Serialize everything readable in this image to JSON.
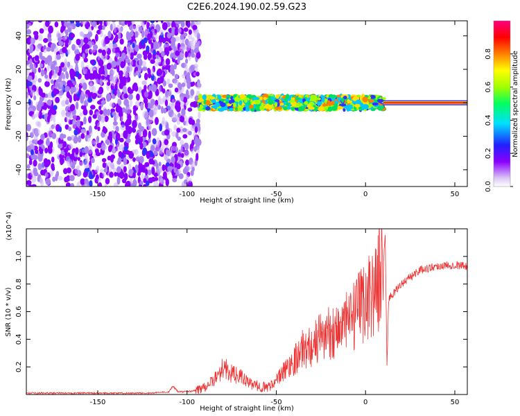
{
  "title": "C2E6.2024.190.02.59.G23",
  "chart_data": [
    {
      "type": "heatmap",
      "xlabel": "Height of straight line (km)",
      "ylabel": "Frequency (Hz)",
      "xlim": [
        -190,
        57
      ],
      "ylim": [
        -50,
        49
      ],
      "xticks": [
        -150,
        -100,
        -50,
        0,
        50
      ],
      "yticks": [
        -40,
        -20,
        0,
        20,
        40
      ],
      "colorbar": {
        "label": "Normalized spectral amplitude",
        "range": [
          0,
          1
        ],
        "ticks": [
          0.0,
          0.2,
          0.4,
          0.6,
          0.8
        ]
      },
      "regions": [
        {
          "x": [
            -190,
            -108
          ],
          "freq_spread": 50,
          "amplitude": 0.12,
          "desc": "broadband noise"
        },
        {
          "x": [
            -108,
            -93
          ],
          "freq_spread": 50,
          "amplitude": 0.1,
          "desc": "broadband noise"
        },
        {
          "x": [
            -93,
            10
          ],
          "freq_spread": 4,
          "amplitude": 0.6,
          "desc": "signal near 0 Hz"
        },
        {
          "x": [
            10,
            57
          ],
          "freq_spread": 1,
          "amplitude": 0.95,
          "desc": "strong signal at 0 Hz"
        }
      ]
    },
    {
      "type": "line",
      "xlabel": "Height of straight line (km)",
      "ylabel": "SNR (10 * v/v)",
      "y_multiplier": "(x10^4)",
      "xlim": [
        -190,
        57
      ],
      "ylim": [
        0,
        1.2
      ],
      "xticks": [
        -150,
        -100,
        -50,
        0,
        50
      ],
      "yticks": [
        0.2,
        0.4,
        0.6,
        0.8,
        1.0
      ],
      "series": [
        {
          "color": "#ee3333",
          "x": [
            -190,
            -150,
            -120,
            -110,
            -108,
            -105,
            -100,
            -95,
            -90,
            -85,
            -80,
            -75,
            -70,
            -65,
            -60,
            -55,
            -50,
            -45,
            -40,
            -35,
            -30,
            -25,
            -20,
            -15,
            -10,
            -5,
            0,
            5,
            8,
            10,
            11,
            12,
            13,
            15,
            20,
            25,
            30,
            40,
            50,
            57
          ],
          "values": [
            0.01,
            0.01,
            0.01,
            0.02,
            0.06,
            0.02,
            0.02,
            0.03,
            0.06,
            0.1,
            0.2,
            0.15,
            0.13,
            0.08,
            0.06,
            0.05,
            0.1,
            0.18,
            0.25,
            0.33,
            0.35,
            0.42,
            0.45,
            0.48,
            0.52,
            0.58,
            0.7,
            0.75,
            0.85,
            0.95,
            1.16,
            0.2,
            0.7,
            0.72,
            0.8,
            0.85,
            0.9,
            0.93,
            0.94,
            0.93
          ]
        }
      ]
    }
  ]
}
